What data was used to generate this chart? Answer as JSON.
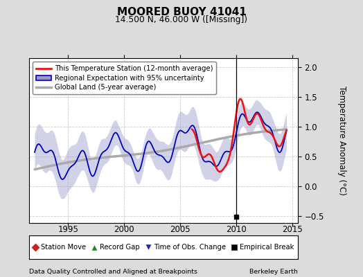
{
  "title": "MOORED BUOY 41041",
  "subtitle": "14.500 N, 46.000 W ([Missing])",
  "ylabel": "Temperature Anomaly (°C)",
  "xlabel_left": "Data Quality Controlled and Aligned at Breakpoints",
  "xlabel_right": "Berkeley Earth",
  "xlim": [
    1991.5,
    2015.5
  ],
  "ylim": [
    -0.62,
    2.15
  ],
  "yticks": [
    -0.5,
    0.0,
    0.5,
    1.0,
    1.5,
    2.0
  ],
  "xticks": [
    1995,
    2000,
    2005,
    2010,
    2015
  ],
  "vertical_line_x": 2010.0,
  "empirical_break_x": 2010.0,
  "empirical_break_y": -0.52,
  "bg_color": "#dcdcdc",
  "plot_bg_color": "#ffffff",
  "grid_color": "#cccccc",
  "red_line_color": "#ee1111",
  "blue_line_color": "#0000bb",
  "blue_fill_color": "#9999cc",
  "gray_line_color": "#aaaaaa",
  "blue_fill_alpha": 0.45,
  "legend1_labels": [
    "This Temperature Station (12-month average)",
    "Regional Expectation with 95% uncertainty",
    "Global Land (5-year average)"
  ],
  "legend2_labels": [
    "Station Move",
    "Record Gap",
    "Time of Obs. Change",
    "Empirical Break"
  ]
}
